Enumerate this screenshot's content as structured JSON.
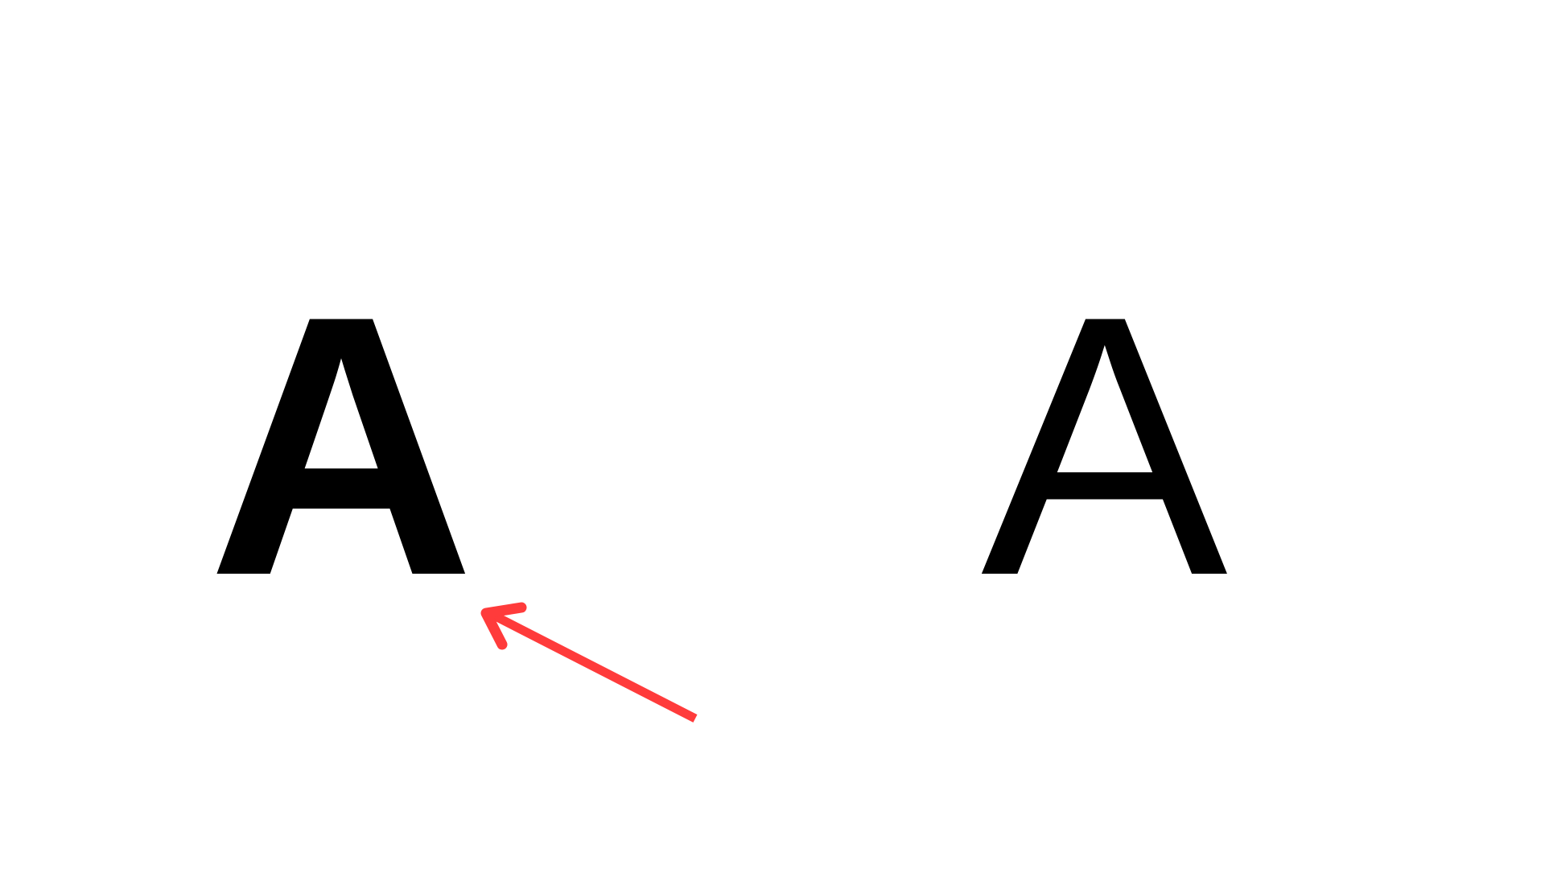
{
  "letters": {
    "left": "A",
    "right": "A"
  },
  "annotation": {
    "icon": "arrow-icon",
    "color": "#ff3b3b"
  },
  "colors": {
    "background": "#ffffff",
    "text": "#000000"
  }
}
